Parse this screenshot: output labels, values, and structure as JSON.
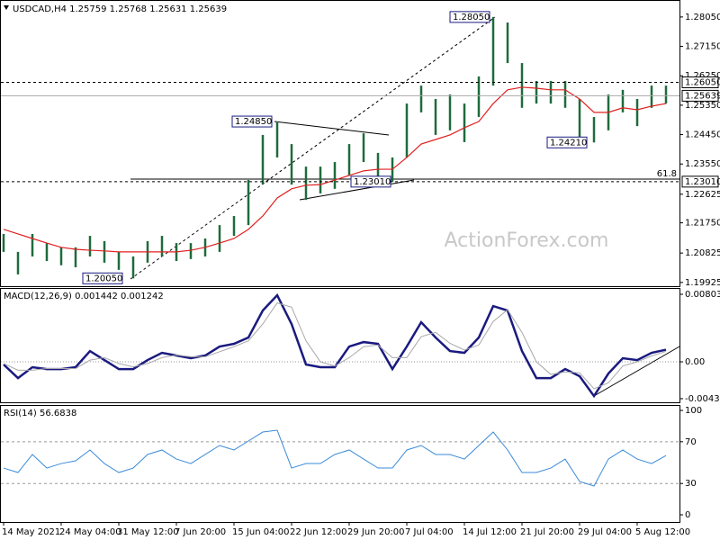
{
  "chart_data": [
    {
      "type": "range",
      "title": "USDCAD,H4 1.25759 1.25768 1.25631 1.25639",
      "watermark": "ActionForex.com",
      "ylim": [
        1.1981,
        1.2857
      ],
      "yticks": [
        {
          "value": 1.2805,
          "label": "1.28050"
        },
        {
          "value": 1.2715,
          "label": "1.27150"
        },
        {
          "value": 1.2625,
          "label": "1.26250"
        },
        {
          "value": 1.2535,
          "label": "1.25350"
        },
        {
          "value": 1.2445,
          "label": "1.24450"
        },
        {
          "value": 1.2355,
          "label": "1.23550"
        },
        {
          "value": 1.22625,
          "label": "1.22625"
        },
        {
          "value": 1.2175,
          "label": "1.21750"
        },
        {
          "value": 1.20825,
          "label": "1.20825"
        },
        {
          "value": 1.19925,
          "label": "1.19925"
        }
      ],
      "color": "#1e6b3c",
      "high": [
        1.2141,
        1.2086,
        1.2141,
        1.2113,
        1.21,
        1.21,
        1.2135,
        1.2119,
        1.2086,
        1.2072,
        1.2119,
        1.2135,
        1.2113,
        1.2113,
        1.2127,
        1.2168,
        1.2196,
        1.2306,
        1.2444,
        1.2485,
        1.2416,
        1.2347,
        1.2347,
        1.2361,
        1.2416,
        1.2449,
        1.2389,
        1.2375,
        1.254,
        1.2595,
        1.2554,
        1.2568,
        1.254,
        1.2623,
        1.2805,
        1.2788,
        1.2664,
        1.2609,
        1.2609,
        1.2609,
        1.2554,
        1.2499,
        1.2568,
        1.2582,
        1.2554,
        1.2595,
        1.2595
      ],
      "low": [
        1.2086,
        1.2017,
        1.2072,
        1.2058,
        1.2045,
        1.2039,
        1.2072,
        1.2053,
        1.2031,
        1.2005,
        1.2053,
        1.2072,
        1.2058,
        1.2064,
        1.2072,
        1.2086,
        1.2135,
        1.2168,
        1.2292,
        1.2375,
        1.2292,
        1.2245,
        1.2265,
        1.2279,
        1.232,
        1.2361,
        1.2306,
        1.2301,
        1.2375,
        1.2513,
        1.2444,
        1.2458,
        1.2422,
        1.2499,
        1.2595,
        1.2664,
        1.2527,
        1.254,
        1.254,
        1.2527,
        1.2422,
        1.2421,
        1.2458,
        1.2513,
        1.2471,
        1.2527,
        1.254
      ],
      "ma": {
        "color": "#e02020",
        "values": [
          1.2155,
          1.2141,
          1.2127,
          1.2113,
          1.21,
          1.2094,
          1.2091,
          1.2089,
          1.2086,
          1.2086,
          1.2086,
          1.2086,
          1.2086,
          1.2091,
          1.21,
          1.2113,
          1.2127,
          1.2155,
          1.2196,
          1.2251,
          1.2279,
          1.229,
          1.2292,
          1.2306,
          1.232,
          1.2334,
          1.2339,
          1.2339,
          1.2375,
          1.2416,
          1.243,
          1.2444,
          1.2466,
          1.2485,
          1.254,
          1.2582,
          1.259,
          1.2587,
          1.2582,
          1.2582,
          1.2554,
          1.2513,
          1.2513,
          1.2527,
          1.2521,
          1.2532,
          1.254
        ]
      },
      "levels": [
        {
          "value": 1.2605,
          "label": "1.26050",
          "style": "dashed"
        },
        {
          "value": 1.25639,
          "label": "1.25639",
          "style": "solid"
        },
        {
          "value": 1.2301,
          "label": "1.23010",
          "style": "dashed"
        }
      ],
      "annotations": [
        {
          "value": 1.2805,
          "label": "1.28050"
        },
        {
          "value": 1.2485,
          "label": "1.24850"
        },
        {
          "value": 1.2301,
          "label": "1.23010"
        },
        {
          "value": 1.2421,
          "label": "1.24210"
        },
        {
          "value": 1.2005,
          "label": "1.20050"
        }
      ],
      "fib_label": 61.8
    },
    {
      "type": "line",
      "title": "MACD(12,26,9) 0.001442 0.001242",
      "ylim": [
        -0.00492,
        0.00878
      ],
      "yticks": [
        0.008032,
        {
          "value": 0,
          "label": "0.00"
        },
        -0.004379
      ],
      "series": [
        {
          "color": "#1a1a80",
          "width": 2.5,
          "values": [
            -0.00032,
            -0.00193,
            -0.00064,
            -0.00086,
            -0.00086,
            -0.00064,
            0.00128,
            0.00021,
            -0.00086,
            -0.00086,
            0.00021,
            0.00107,
            0.00075,
            0.00043,
            0.00075,
            0.00182,
            0.00214,
            0.00289,
            0.0061,
            0.00792,
            0.00449,
            -0.00032,
            -0.00064,
            -0.00064,
            0.00182,
            0.00235,
            0.00214,
            -0.00086,
            0.00182,
            0.00471,
            0.00289,
            0.00128,
            0.00107,
            0.00289,
            0.00663,
            0.0061,
            0.00128,
            -0.00193,
            -0.00193,
            -0.00086,
            -0.00171,
            -0.00407,
            -0.00139,
            0.00043,
            0.00021,
            0.00107,
            0.00144
          ]
        },
        {
          "color": "#a8a8a8",
          "width": 1,
          "values": [
            -0.0002,
            -0.001,
            -0.001,
            -0.0008,
            -0.0008,
            -0.0008,
            0.0002,
            0.0005,
            -0.0002,
            -0.0006,
            -0.0002,
            0.0005,
            0.0008,
            0.0006,
            0.0006,
            0.0012,
            0.0018,
            0.0025,
            0.0045,
            0.007,
            0.0065,
            0.0025,
            0,
            -0.0005,
            0.0005,
            0.0018,
            0.002,
            0.0005,
            0.0005,
            0.003,
            0.0035,
            0.0022,
            0.0014,
            0.002,
            0.0048,
            0.0062,
            0.0035,
            0,
            -0.0015,
            -0.0012,
            -0.0013,
            -0.0032,
            -0.0025,
            -0.0005,
            0,
            0.0007,
            0.00124
          ]
        }
      ]
    },
    {
      "type": "line",
      "title": "RSI(14) 56.6838",
      "ylim": [
        -6.9,
        105.2
      ],
      "yticks": [
        100,
        70,
        30,
        0
      ],
      "categories": [
        "14 May 2021",
        null,
        null,
        null,
        "24 May 04:00",
        null,
        null,
        null,
        "31 May 12:00",
        null,
        null,
        null,
        "7 Jun 20:00",
        null,
        null,
        null,
        "15 Jun 04:00",
        null,
        null,
        null,
        "22 Jun 12:00",
        null,
        null,
        null,
        "29 Jun 20:00",
        null,
        null,
        null,
        "7 Jul 04:00",
        null,
        null,
        null,
        "14 Jul 12:00",
        null,
        null,
        null,
        "21 Jul 20:00",
        null,
        null,
        null,
        "29 Jul 04:00",
        null,
        null,
        null,
        "5 Aug 12:00",
        null,
        null
      ],
      "series": [
        {
          "color": "#3a8ad8",
          "width": 1,
          "values": [
            44.8,
            40.5,
            57.8,
            44.8,
            49.1,
            51.7,
            62.1,
            49.1,
            40.5,
            44.8,
            57.8,
            62.1,
            53.4,
            49.1,
            57.8,
            66.4,
            62.1,
            70.7,
            79.3,
            81.0,
            44.8,
            49.1,
            49.1,
            57.8,
            62.1,
            53.4,
            44.8,
            44.8,
            62.1,
            66.4,
            57.8,
            57.8,
            53.4,
            66.4,
            79.3,
            62.1,
            40.5,
            40.5,
            44.8,
            53.4,
            31.9,
            27.6,
            53.4,
            62.1,
            53.4,
            49.1,
            56.7
          ]
        }
      ]
    }
  ]
}
